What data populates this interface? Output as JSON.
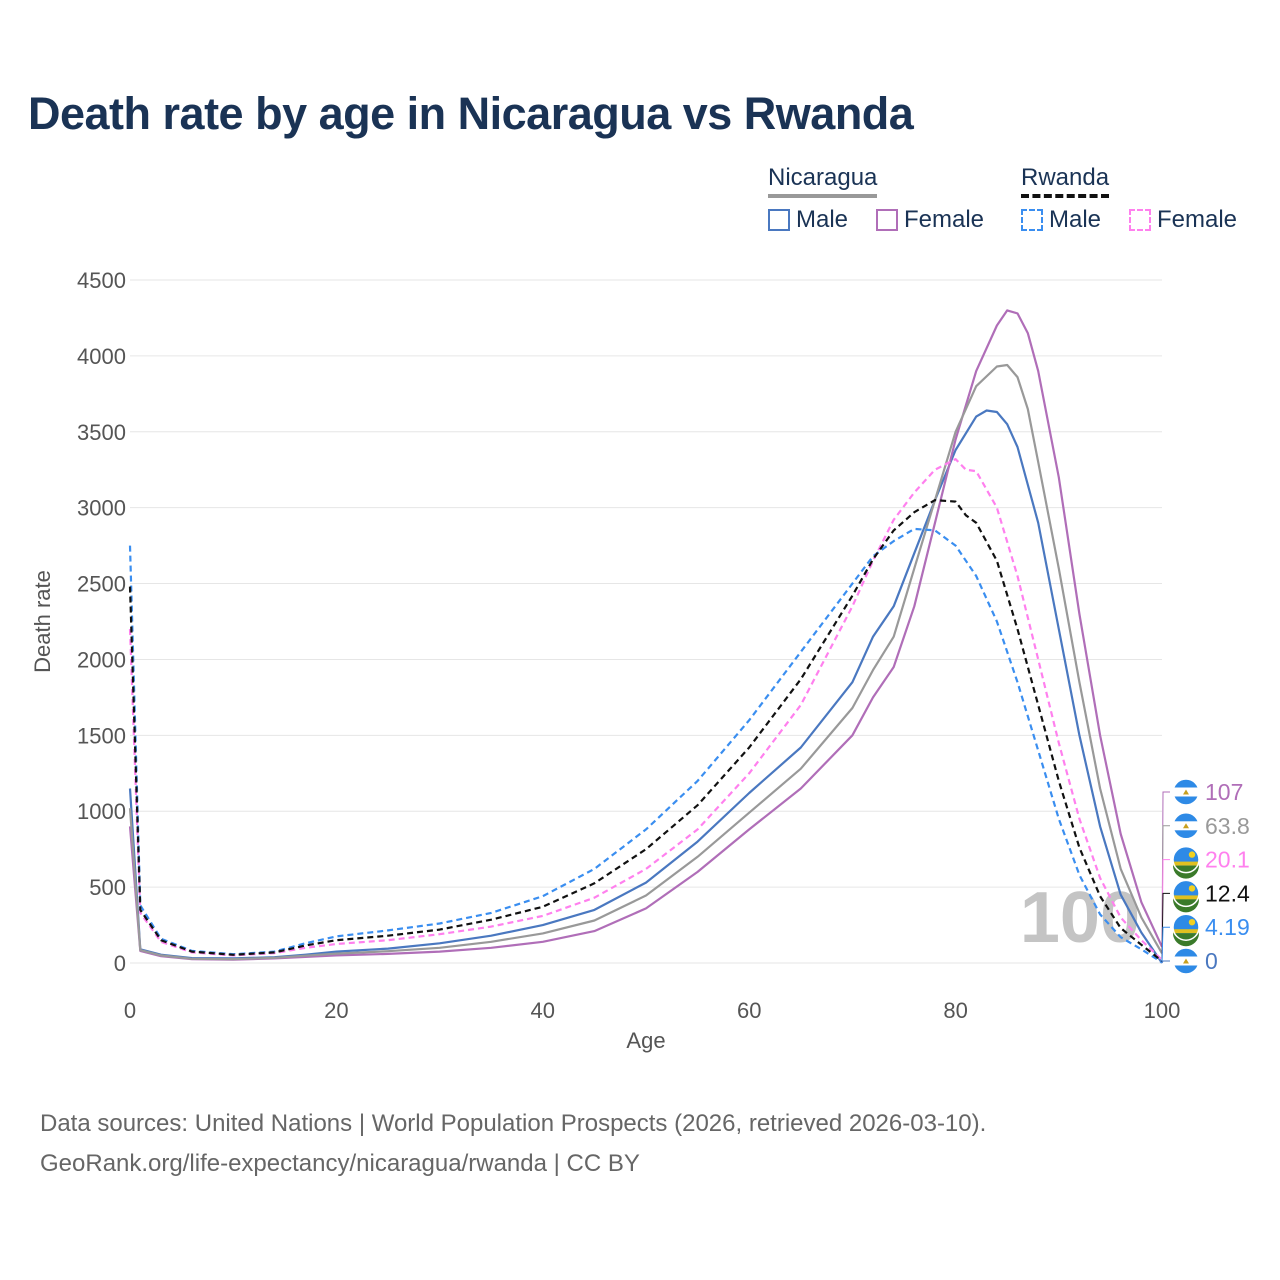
{
  "colors": {
    "title": "#1a3355",
    "nicaragua_male": "#4a78c0",
    "nicaragua_female": "#b06eb8",
    "nicaragua_total": "#999999",
    "rwanda_male": "#3a8ef0",
    "rwanda_female": "#ff80ee",
    "rwanda_total": "#111111",
    "flag_blue": "#2e8ae6",
    "flag_green": "#3a7a2a",
    "flag_yellow": "#e0c020"
  },
  "legend": {
    "group1": "Nicaragua",
    "group2": "Rwanda",
    "male": "Male",
    "female": "Female"
  },
  "footer": {
    "line1": "Data sources: United Nations | World Population Prospects (2026, retrieved 2026-03-10).",
    "line2": "GeoRank.org/life-expectancy/nicaragua/rwanda | CC BY"
  },
  "chart_data": {
    "type": "line",
    "title": "Death rate by age in Nicaragua vs Rwanda",
    "xlabel": "Age",
    "ylabel": "Death rate",
    "xlim": [
      0,
      100
    ],
    "ylim": [
      0,
      4500
    ],
    "xticks": [
      0,
      20,
      40,
      60,
      80,
      100
    ],
    "yticks": [
      0,
      500,
      1000,
      1500,
      2000,
      2500,
      3000,
      3500,
      4000,
      4500
    ],
    "grid": true,
    "age_marker": "100",
    "series": [
      {
        "name": "Nicaragua Male",
        "country": "nicaragua",
        "dashed": false,
        "color_key": "nicaragua_male",
        "points": [
          [
            0,
            1150
          ],
          [
            1,
            90
          ],
          [
            3,
            55
          ],
          [
            6,
            32
          ],
          [
            10,
            30
          ],
          [
            14,
            38
          ],
          [
            17,
            55
          ],
          [
            20,
            75
          ],
          [
            25,
            95
          ],
          [
            30,
            130
          ],
          [
            35,
            180
          ],
          [
            40,
            250
          ],
          [
            45,
            350
          ],
          [
            50,
            530
          ],
          [
            55,
            800
          ],
          [
            60,
            1120
          ],
          [
            65,
            1420
          ],
          [
            70,
            1850
          ],
          [
            72,
            2150
          ],
          [
            74,
            2350
          ],
          [
            76,
            2700
          ],
          [
            78,
            3050
          ],
          [
            80,
            3380
          ],
          [
            82,
            3600
          ],
          [
            83,
            3640
          ],
          [
            84,
            3630
          ],
          [
            85,
            3550
          ],
          [
            86,
            3400
          ],
          [
            88,
            2900
          ],
          [
            90,
            2200
          ],
          [
            92,
            1500
          ],
          [
            94,
            900
          ],
          [
            96,
            450
          ],
          [
            98,
            200
          ],
          [
            100,
            0
          ]
        ],
        "end_value": "0"
      },
      {
        "name": "Nicaragua Female",
        "country": "nicaragua",
        "dashed": false,
        "color_key": "nicaragua_female",
        "points": [
          [
            0,
            900
          ],
          [
            1,
            80
          ],
          [
            3,
            45
          ],
          [
            6,
            25
          ],
          [
            10,
            22
          ],
          [
            14,
            30
          ],
          [
            17,
            40
          ],
          [
            20,
            50
          ],
          [
            25,
            60
          ],
          [
            30,
            75
          ],
          [
            35,
            100
          ],
          [
            40,
            140
          ],
          [
            45,
            210
          ],
          [
            50,
            360
          ],
          [
            55,
            600
          ],
          [
            60,
            880
          ],
          [
            65,
            1150
          ],
          [
            70,
            1500
          ],
          [
            72,
            1750
          ],
          [
            74,
            1950
          ],
          [
            76,
            2350
          ],
          [
            78,
            2900
          ],
          [
            80,
            3450
          ],
          [
            82,
            3900
          ],
          [
            84,
            4200
          ],
          [
            85,
            4300
          ],
          [
            86,
            4280
          ],
          [
            87,
            4150
          ],
          [
            88,
            3900
          ],
          [
            90,
            3200
          ],
          [
            92,
            2300
          ],
          [
            94,
            1500
          ],
          [
            96,
            850
          ],
          [
            98,
            400
          ],
          [
            100,
            107
          ]
        ],
        "end_value": "107"
      },
      {
        "name": "Nicaragua Total",
        "country": "nicaragua",
        "dashed": false,
        "color_key": "nicaragua_total",
        "points": [
          [
            0,
            1020
          ],
          [
            1,
            85
          ],
          [
            3,
            50
          ],
          [
            6,
            28
          ],
          [
            10,
            26
          ],
          [
            14,
            34
          ],
          [
            17,
            48
          ],
          [
            20,
            62
          ],
          [
            25,
            78
          ],
          [
            30,
            100
          ],
          [
            35,
            140
          ],
          [
            40,
            195
          ],
          [
            45,
            280
          ],
          [
            50,
            445
          ],
          [
            55,
            700
          ],
          [
            60,
            990
          ],
          [
            65,
            1280
          ],
          [
            70,
            1680
          ],
          [
            72,
            1930
          ],
          [
            74,
            2150
          ],
          [
            76,
            2600
          ],
          [
            78,
            3050
          ],
          [
            80,
            3500
          ],
          [
            82,
            3800
          ],
          [
            84,
            3930
          ],
          [
            85,
            3940
          ],
          [
            86,
            3860
          ],
          [
            87,
            3650
          ],
          [
            88,
            3300
          ],
          [
            90,
            2600
          ],
          [
            92,
            1850
          ],
          [
            94,
            1150
          ],
          [
            96,
            620
          ],
          [
            98,
            300
          ],
          [
            100,
            63.8
          ]
        ],
        "end_value": "63.8"
      },
      {
        "name": "Rwanda Male",
        "country": "rwanda",
        "dashed": true,
        "color_key": "rwanda_male",
        "points": [
          [
            0,
            2750
          ],
          [
            1,
            380
          ],
          [
            3,
            160
          ],
          [
            6,
            80
          ],
          [
            10,
            58
          ],
          [
            14,
            75
          ],
          [
            17,
            130
          ],
          [
            20,
            175
          ],
          [
            25,
            215
          ],
          [
            30,
            260
          ],
          [
            35,
            330
          ],
          [
            40,
            440
          ],
          [
            45,
            620
          ],
          [
            50,
            880
          ],
          [
            55,
            1200
          ],
          [
            60,
            1600
          ],
          [
            65,
            2050
          ],
          [
            70,
            2500
          ],
          [
            72,
            2680
          ],
          [
            74,
            2780
          ],
          [
            76,
            2860
          ],
          [
            78,
            2850
          ],
          [
            80,
            2750
          ],
          [
            82,
            2550
          ],
          [
            84,
            2250
          ],
          [
            86,
            1850
          ],
          [
            88,
            1400
          ],
          [
            90,
            950
          ],
          [
            92,
            580
          ],
          [
            94,
            320
          ],
          [
            96,
            170
          ],
          [
            98,
            90
          ],
          [
            100,
            4.19
          ]
        ],
        "end_value": "4.19"
      },
      {
        "name": "Rwanda Female",
        "country": "rwanda",
        "dashed": true,
        "color_key": "rwanda_female",
        "points": [
          [
            0,
            2200
          ],
          [
            1,
            330
          ],
          [
            3,
            140
          ],
          [
            6,
            70
          ],
          [
            10,
            50
          ],
          [
            14,
            65
          ],
          [
            17,
            100
          ],
          [
            20,
            125
          ],
          [
            25,
            150
          ],
          [
            30,
            190
          ],
          [
            35,
            240
          ],
          [
            40,
            310
          ],
          [
            45,
            430
          ],
          [
            50,
            620
          ],
          [
            55,
            880
          ],
          [
            60,
            1250
          ],
          [
            65,
            1700
          ],
          [
            70,
            2350
          ],
          [
            72,
            2650
          ],
          [
            74,
            2920
          ],
          [
            76,
            3100
          ],
          [
            78,
            3250
          ],
          [
            80,
            3320
          ],
          [
            81,
            3250
          ],
          [
            82,
            3240
          ],
          [
            84,
            3000
          ],
          [
            86,
            2550
          ],
          [
            88,
            2000
          ],
          [
            90,
            1450
          ],
          [
            92,
            950
          ],
          [
            94,
            560
          ],
          [
            96,
            300
          ],
          [
            98,
            150
          ],
          [
            100,
            20.1
          ]
        ],
        "end_value": "20.1"
      },
      {
        "name": "Rwanda Total",
        "country": "rwanda",
        "dashed": true,
        "color_key": "rwanda_total",
        "points": [
          [
            0,
            2480
          ],
          [
            1,
            350
          ],
          [
            3,
            150
          ],
          [
            6,
            75
          ],
          [
            10,
            54
          ],
          [
            14,
            70
          ],
          [
            17,
            115
          ],
          [
            20,
            150
          ],
          [
            25,
            180
          ],
          [
            30,
            220
          ],
          [
            35,
            285
          ],
          [
            40,
            370
          ],
          [
            45,
            525
          ],
          [
            50,
            750
          ],
          [
            55,
            1040
          ],
          [
            60,
            1420
          ],
          [
            65,
            1870
          ],
          [
            70,
            2420
          ],
          [
            72,
            2660
          ],
          [
            74,
            2850
          ],
          [
            76,
            2970
          ],
          [
            78,
            3050
          ],
          [
            80,
            3040
          ],
          [
            81,
            2950
          ],
          [
            82,
            2900
          ],
          [
            84,
            2650
          ],
          [
            86,
            2200
          ],
          [
            88,
            1700
          ],
          [
            90,
            1200
          ],
          [
            92,
            760
          ],
          [
            94,
            440
          ],
          [
            96,
            230
          ],
          [
            98,
            120
          ],
          [
            100,
            12.4
          ]
        ],
        "end_value": "12.4"
      }
    ],
    "end_labels_order": [
      "Nicaragua Female",
      "Nicaragua Total",
      "Rwanda Female",
      "Rwanda Total",
      "Rwanda Male",
      "Nicaragua Male"
    ]
  }
}
